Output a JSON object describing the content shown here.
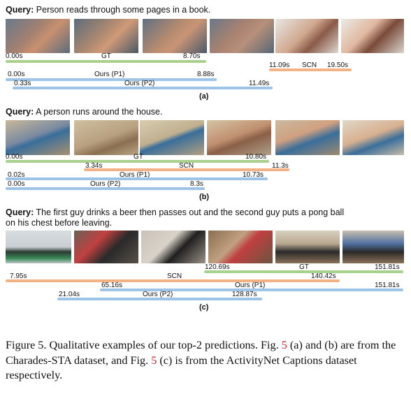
{
  "panels": [
    {
      "id": "a",
      "query_label": "Query:",
      "query_text": "Person reads through some pages in a book.",
      "sublabel": "(a)",
      "gt": {
        "name": "GT",
        "start": "0.00s",
        "end": "8.70s"
      },
      "scn": {
        "name": "SCN",
        "start": "11.09s",
        "end": "19.50s"
      },
      "p1": {
        "name": "Ours (P1)",
        "start": "0.00s",
        "end": "8.88s"
      },
      "p2": {
        "name": "Ours (P2)",
        "start": "0.33s",
        "end": "11.49s"
      }
    },
    {
      "id": "b",
      "query_label": "Query:",
      "query_text": "A person runs around the house.",
      "sublabel": "(b)",
      "gt": {
        "name": "GT",
        "start": "0.00s",
        "end": "10.80s"
      },
      "scn": {
        "name": "SCN",
        "start": "3.34s",
        "end": "11.3s"
      },
      "p1": {
        "name": "Ours (P1)",
        "start": "0.02s",
        "end": "10.73s"
      },
      "p2": {
        "name": "Ours (P2)",
        "start": "0.00s",
        "end": "8.3s"
      }
    },
    {
      "id": "c",
      "query_label": "Query:",
      "query_text_line1": "The first guy drinks a beer then passes out and  the second guy puts a pong ball",
      "query_text_line2": "on his chest before leaving.",
      "sublabel": "(c)",
      "gt": {
        "name": "GT",
        "start": "120.69s",
        "end": "151.81s"
      },
      "scn": {
        "name": "SCN",
        "start": "7.95s",
        "end": "140.42s"
      },
      "p1": {
        "name": "Ours (P1)",
        "start": "65.16s",
        "end": "151.81s"
      },
      "p2": {
        "name": "Ours (P2)",
        "start": "21.04s",
        "end": "128.87s"
      }
    }
  ],
  "caption": {
    "part1": "Figure 5. Qualitative examples of our top-2 predictions. Fig. ",
    "ref1": "5",
    "part2": " (a) and (b) are from the Charades-STA dataset, and Fig. ",
    "ref2": "5",
    "part3": " (c) is from the ActivityNet Captions dataset respectively."
  },
  "colors": {
    "gt": "#a9d18e",
    "scn": "#f4b183",
    "ours": "#9dc3e6",
    "ref": "#c0282d"
  }
}
